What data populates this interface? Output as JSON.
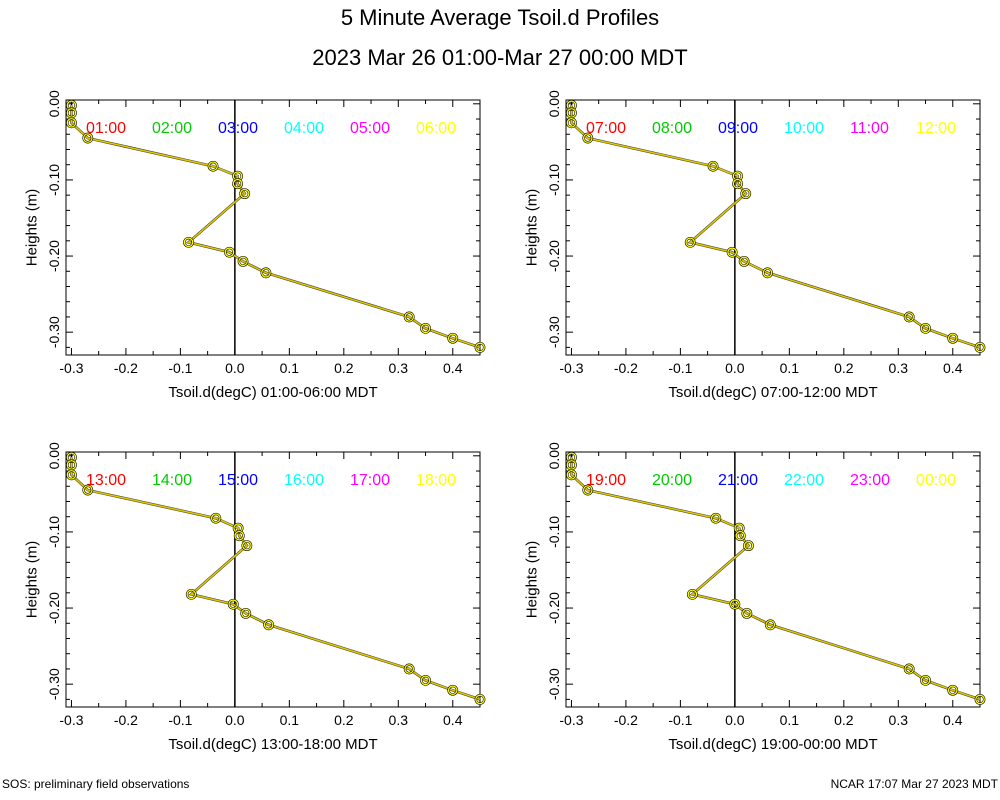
{
  "title": "5 Minute Average Tsoil.d Profiles",
  "subtitle": "2023 Mar 26 01:00-Mar 27 00:00 MDT",
  "footer_left": "SOS: preliminary field observations",
  "footer_right": "NCAR 17:07 Mar 27 2023 MDT",
  "colors": {
    "profile_line": "#e0c800",
    "marker_face": "#ffff00",
    "marker_edge": "#000000",
    "axis": "#000000",
    "zero_line": "#000000"
  },
  "chart_data": [
    {
      "type": "line",
      "xlabel": "Tsoil.d(degC) 01:00-06:00 MDT",
      "ylabel": "Heights (m)",
      "xlim": [
        -0.31,
        0.45
      ],
      "ylim": [
        -0.33,
        0.005
      ],
      "xticks": [
        -0.3,
        -0.2,
        -0.1,
        0.0,
        0.1,
        0.2,
        0.3,
        0.4
      ],
      "xtick_labels": [
        "-0.3",
        "-0.2",
        "-0.1",
        "0.0",
        "0.1",
        "0.2",
        "0.3",
        "0.4"
      ],
      "yticks": [
        0.0,
        -0.1,
        -0.2,
        -0.3
      ],
      "ytick_labels": [
        "0.00",
        "-0.10",
        "-0.20",
        "-0.30"
      ],
      "legend": [
        {
          "label": "01:00",
          "color": "#ff0000"
        },
        {
          "label": "02:00",
          "color": "#00cc00"
        },
        {
          "label": "03:00",
          "color": "#0000ff"
        },
        {
          "label": "04:00",
          "color": "#00ffff"
        },
        {
          "label": "05:00",
          "color": "#ff00ff"
        },
        {
          "label": "06:00",
          "color": "#ffff00"
        }
      ],
      "series": [
        {
          "name": "06:00",
          "x": [
            -0.3,
            -0.3,
            -0.3,
            -0.27,
            -0.04,
            0.005,
            0.005,
            0.018,
            -0.085,
            -0.01,
            0.015,
            0.057,
            0.32,
            0.35,
            0.4,
            0.45
          ],
          "y": [
            -0.002,
            -0.012,
            -0.025,
            -0.045,
            -0.082,
            -0.095,
            -0.105,
            -0.118,
            -0.182,
            -0.195,
            -0.207,
            -0.222,
            -0.28,
            -0.295,
            -0.308,
            -0.32
          ]
        }
      ]
    },
    {
      "type": "line",
      "xlabel": "Tsoil.d(degC) 07:00-12:00 MDT",
      "ylabel": "Heights (m)",
      "xlim": [
        -0.31,
        0.45
      ],
      "ylim": [
        -0.33,
        0.005
      ],
      "xticks": [
        -0.3,
        -0.2,
        -0.1,
        0.0,
        0.1,
        0.2,
        0.3,
        0.4
      ],
      "xtick_labels": [
        "-0.3",
        "-0.2",
        "-0.1",
        "0.0",
        "0.1",
        "0.2",
        "0.3",
        "0.4"
      ],
      "yticks": [
        0.0,
        -0.1,
        -0.2,
        -0.3
      ],
      "ytick_labels": [
        "0.00",
        "-0.10",
        "-0.20",
        "-0.30"
      ],
      "legend": [
        {
          "label": "07:00",
          "color": "#ff0000"
        },
        {
          "label": "08:00",
          "color": "#00cc00"
        },
        {
          "label": "09:00",
          "color": "#0000ff"
        },
        {
          "label": "10:00",
          "color": "#00ffff"
        },
        {
          "label": "11:00",
          "color": "#ff00ff"
        },
        {
          "label": "12:00",
          "color": "#ffff00"
        }
      ],
      "series": [
        {
          "name": "12:00",
          "x": [
            -0.3,
            -0.3,
            -0.3,
            -0.27,
            -0.04,
            0.005,
            0.005,
            0.02,
            -0.082,
            -0.005,
            0.017,
            0.06,
            0.32,
            0.35,
            0.4,
            0.45
          ],
          "y": [
            -0.002,
            -0.012,
            -0.025,
            -0.045,
            -0.082,
            -0.095,
            -0.105,
            -0.118,
            -0.182,
            -0.195,
            -0.207,
            -0.222,
            -0.28,
            -0.295,
            -0.308,
            -0.32
          ]
        }
      ]
    },
    {
      "type": "line",
      "xlabel": "Tsoil.d(degC) 13:00-18:00 MDT",
      "ylabel": "Heights (m)",
      "xlim": [
        -0.31,
        0.45
      ],
      "ylim": [
        -0.33,
        0.005
      ],
      "xticks": [
        -0.3,
        -0.2,
        -0.1,
        0.0,
        0.1,
        0.2,
        0.3,
        0.4
      ],
      "xtick_labels": [
        "-0.3",
        "-0.2",
        "-0.1",
        "0.0",
        "0.1",
        "0.2",
        "0.3",
        "0.4"
      ],
      "yticks": [
        0.0,
        -0.1,
        -0.2,
        -0.3
      ],
      "ytick_labels": [
        "0.00",
        "-0.10",
        "-0.20",
        "-0.30"
      ],
      "legend": [
        {
          "label": "13:00",
          "color": "#ff0000"
        },
        {
          "label": "14:00",
          "color": "#00cc00"
        },
        {
          "label": "15:00",
          "color": "#0000ff"
        },
        {
          "label": "16:00",
          "color": "#00ffff"
        },
        {
          "label": "17:00",
          "color": "#ff00ff"
        },
        {
          "label": "18:00",
          "color": "#ffff00"
        }
      ],
      "series": [
        {
          "name": "18:00",
          "x": [
            -0.3,
            -0.3,
            -0.3,
            -0.27,
            -0.035,
            0.006,
            0.008,
            0.022,
            -0.08,
            -0.003,
            0.02,
            0.062,
            0.32,
            0.35,
            0.4,
            0.45
          ],
          "y": [
            -0.002,
            -0.012,
            -0.025,
            -0.045,
            -0.082,
            -0.095,
            -0.105,
            -0.118,
            -0.182,
            -0.195,
            -0.207,
            -0.222,
            -0.28,
            -0.295,
            -0.308,
            -0.32
          ]
        }
      ]
    },
    {
      "type": "line",
      "xlabel": "Tsoil.d(degC) 19:00-00:00 MDT",
      "ylabel": "Heights (m)",
      "xlim": [
        -0.31,
        0.45
      ],
      "ylim": [
        -0.33,
        0.005
      ],
      "xticks": [
        -0.3,
        -0.2,
        -0.1,
        0.0,
        0.1,
        0.2,
        0.3,
        0.4
      ],
      "xtick_labels": [
        "-0.3",
        "-0.2",
        "-0.1",
        "0.0",
        "0.1",
        "0.2",
        "0.3",
        "0.4"
      ],
      "yticks": [
        0.0,
        -0.1,
        -0.2,
        -0.3
      ],
      "ytick_labels": [
        "0.00",
        "-0.10",
        "-0.20",
        "-0.30"
      ],
      "legend": [
        {
          "label": "19:00",
          "color": "#ff0000"
        },
        {
          "label": "20:00",
          "color": "#00cc00"
        },
        {
          "label": "21:00",
          "color": "#0000ff"
        },
        {
          "label": "22:00",
          "color": "#00ffff"
        },
        {
          "label": "23:00",
          "color": "#ff00ff"
        },
        {
          "label": "00:00",
          "color": "#ffff00"
        }
      ],
      "series": [
        {
          "name": "00:00",
          "x": [
            -0.3,
            -0.3,
            -0.3,
            -0.27,
            -0.035,
            0.008,
            0.01,
            0.025,
            -0.078,
            0.0,
            0.022,
            0.065,
            0.32,
            0.35,
            0.4,
            0.45
          ],
          "y": [
            -0.002,
            -0.012,
            -0.025,
            -0.045,
            -0.082,
            -0.095,
            -0.105,
            -0.118,
            -0.182,
            -0.195,
            -0.207,
            -0.222,
            -0.28,
            -0.295,
            -0.308,
            -0.32
          ]
        }
      ]
    }
  ]
}
